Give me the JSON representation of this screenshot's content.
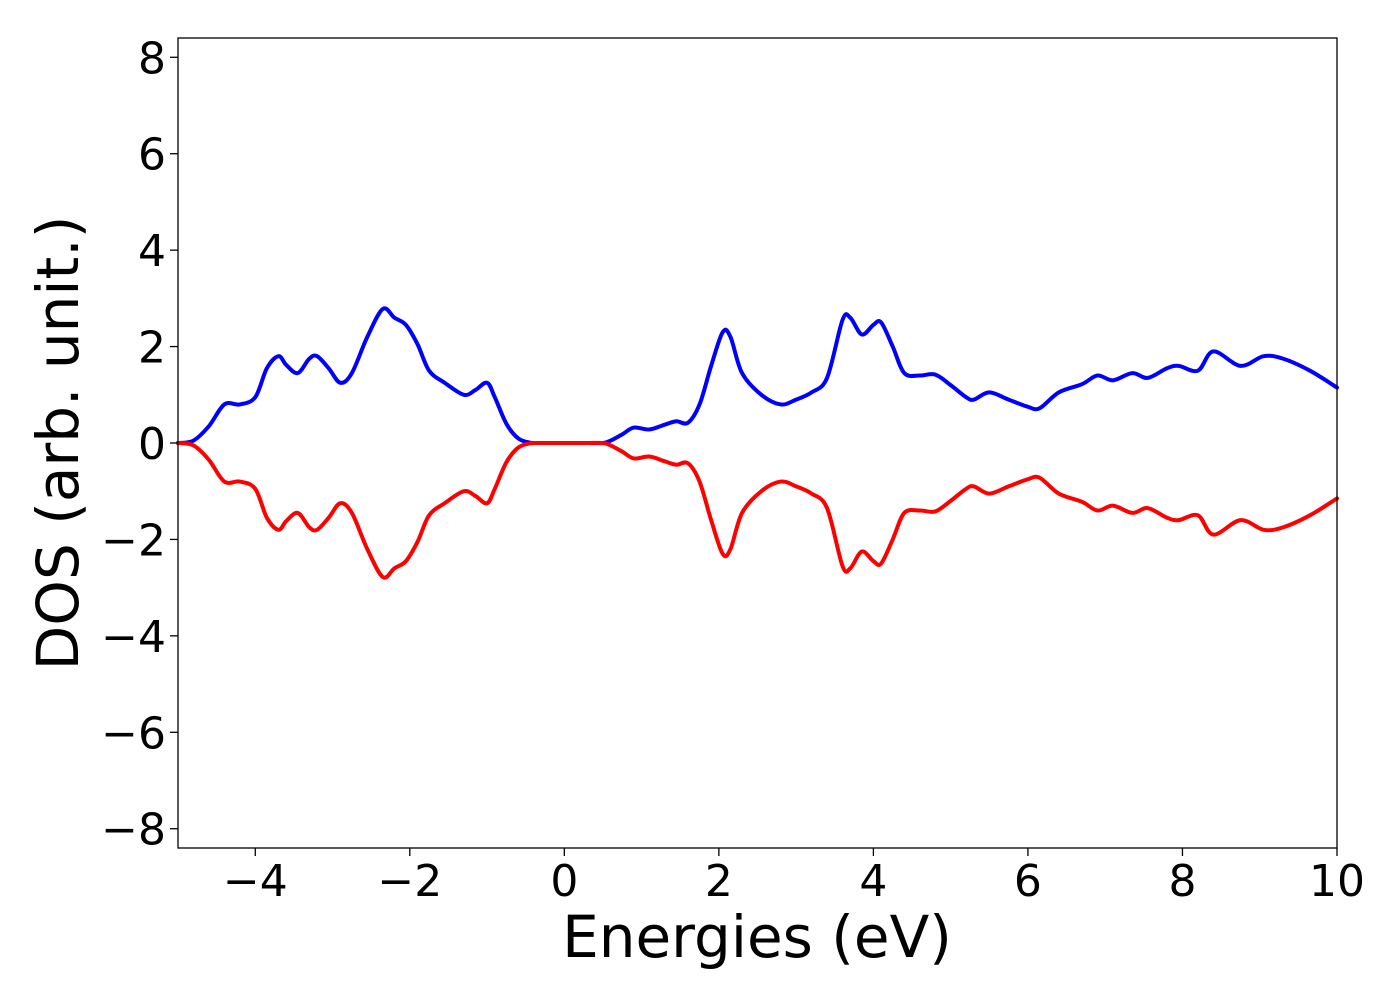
{
  "chart_data": {
    "type": "line",
    "title": "",
    "xlabel": "Energies (eV)",
    "ylabel": "DOS (arb. unit.)",
    "xlim": [
      -5,
      10
    ],
    "ylim": [
      -8.4,
      8.4
    ],
    "x_ticks": [
      -4,
      -2,
      0,
      2,
      4,
      6,
      8,
      10
    ],
    "x_tick_labels": [
      "−4",
      "−2",
      "0",
      "2",
      "4",
      "6",
      "8",
      "10"
    ],
    "y_ticks": [
      -8,
      -6,
      -4,
      -2,
      0,
      2,
      4,
      6,
      8
    ],
    "y_tick_labels": [
      "−8",
      "−6",
      "−4",
      "−2",
      "0",
      "2",
      "4",
      "6",
      "8"
    ],
    "grid": false,
    "legend": "none",
    "series": [
      {
        "color": "#0000ff",
        "x": [
          -5.0,
          -4.8,
          -4.6,
          -4.4,
          -4.2,
          -4.0,
          -3.85,
          -3.7,
          -3.6,
          -3.45,
          -3.3,
          -3.2,
          -3.05,
          -2.9,
          -2.75,
          -2.55,
          -2.35,
          -2.2,
          -2.05,
          -1.9,
          -1.75,
          -1.55,
          -1.3,
          -1.15,
          -1.0,
          -0.9,
          -0.75,
          -0.6,
          -0.45,
          -0.3,
          -0.1,
          0.1,
          0.3,
          0.5,
          0.6,
          0.75,
          0.9,
          1.1,
          1.3,
          1.45,
          1.6,
          1.75,
          1.9,
          2.05,
          2.15,
          2.3,
          2.55,
          2.8,
          3.0,
          3.2,
          3.4,
          3.6,
          3.7,
          3.85,
          4.0,
          4.1,
          4.25,
          4.4,
          4.6,
          4.8,
          5.0,
          5.2,
          5.3,
          5.5,
          5.75,
          6.0,
          6.15,
          6.4,
          6.7,
          6.9,
          7.1,
          7.35,
          7.55,
          7.8,
          7.95,
          8.2,
          8.4,
          8.75,
          9.05,
          9.3,
          9.65,
          10.0
        ],
        "y": [
          0.0,
          0.05,
          0.35,
          0.8,
          0.8,
          0.95,
          1.55,
          1.8,
          1.62,
          1.45,
          1.75,
          1.8,
          1.55,
          1.25,
          1.45,
          2.2,
          2.78,
          2.6,
          2.45,
          2.05,
          1.5,
          1.25,
          1.0,
          1.1,
          1.25,
          0.95,
          0.4,
          0.1,
          0.01,
          0.0,
          0.0,
          0.0,
          0.0,
          0.0,
          0.05,
          0.18,
          0.32,
          0.28,
          0.38,
          0.45,
          0.42,
          0.8,
          1.6,
          2.3,
          2.2,
          1.45,
          1.0,
          0.8,
          0.9,
          1.05,
          1.35,
          2.55,
          2.6,
          2.25,
          2.45,
          2.5,
          2.0,
          1.45,
          1.4,
          1.42,
          1.2,
          0.95,
          0.9,
          1.05,
          0.9,
          0.75,
          0.72,
          1.05,
          1.22,
          1.4,
          1.3,
          1.45,
          1.35,
          1.55,
          1.6,
          1.5,
          1.9,
          1.6,
          1.8,
          1.75,
          1.5,
          1.15
        ]
      },
      {
        "color": "#ff0000",
        "x": [
          -5.0,
          -4.8,
          -4.6,
          -4.4,
          -4.2,
          -4.0,
          -3.85,
          -3.7,
          -3.6,
          -3.45,
          -3.3,
          -3.2,
          -3.05,
          -2.9,
          -2.75,
          -2.55,
          -2.35,
          -2.2,
          -2.05,
          -1.9,
          -1.75,
          -1.55,
          -1.3,
          -1.15,
          -1.0,
          -0.9,
          -0.75,
          -0.6,
          -0.45,
          -0.3,
          -0.1,
          0.1,
          0.3,
          0.5,
          0.6,
          0.75,
          0.9,
          1.1,
          1.3,
          1.45,
          1.6,
          1.75,
          1.9,
          2.05,
          2.15,
          2.3,
          2.55,
          2.8,
          3.0,
          3.2,
          3.4,
          3.6,
          3.7,
          3.85,
          4.0,
          4.1,
          4.25,
          4.4,
          4.6,
          4.8,
          5.0,
          5.2,
          5.3,
          5.5,
          5.75,
          6.0,
          6.15,
          6.4,
          6.7,
          6.9,
          7.1,
          7.35,
          7.55,
          7.8,
          7.95,
          8.2,
          8.4,
          8.75,
          9.05,
          9.3,
          9.65,
          10.0
        ],
        "y": [
          0.0,
          -0.05,
          -0.35,
          -0.8,
          -0.8,
          -0.95,
          -1.55,
          -1.8,
          -1.62,
          -1.45,
          -1.75,
          -1.8,
          -1.55,
          -1.25,
          -1.45,
          -2.2,
          -2.78,
          -2.6,
          -2.45,
          -2.05,
          -1.5,
          -1.25,
          -1.0,
          -1.1,
          -1.25,
          -0.95,
          -0.4,
          -0.1,
          -0.01,
          0.0,
          0.0,
          0.0,
          0.0,
          0.0,
          -0.05,
          -0.18,
          -0.32,
          -0.28,
          -0.38,
          -0.45,
          -0.42,
          -0.8,
          -1.6,
          -2.3,
          -2.2,
          -1.45,
          -1.0,
          -0.8,
          -0.9,
          -1.05,
          -1.35,
          -2.55,
          -2.6,
          -2.25,
          -2.45,
          -2.5,
          -2.0,
          -1.45,
          -1.4,
          -1.42,
          -1.2,
          -0.95,
          -0.9,
          -1.05,
          -0.9,
          -0.75,
          -0.72,
          -1.05,
          -1.22,
          -1.4,
          -1.3,
          -1.45,
          -1.35,
          -1.55,
          -1.6,
          -1.5,
          -1.9,
          -1.6,
          -1.8,
          -1.75,
          -1.5,
          -1.15
        ]
      }
    ]
  }
}
